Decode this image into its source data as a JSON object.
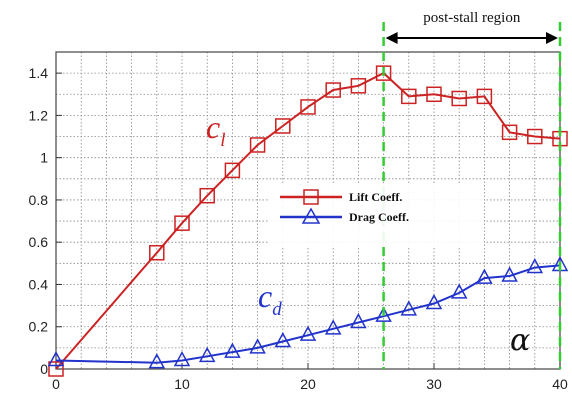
{
  "chart_data": {
    "type": "line",
    "title": "",
    "xlabel": "α",
    "ylabel": "",
    "xlim": [
      0,
      40
    ],
    "ylim": [
      0,
      1.4
    ],
    "x_ticks": [
      "0",
      "10",
      "20",
      "30",
      "40"
    ],
    "y_ticks": [
      "0",
      "0.2",
      "0.4",
      "0.6",
      "0.8",
      "1",
      "1.2",
      "1.4"
    ],
    "grid": true,
    "legend_placement": "center-right",
    "series": [
      {
        "name": "Lift  Coeff.",
        "label": "c_l",
        "label_main": "c",
        "label_sub": "l",
        "color": "#cc2222",
        "marker": "square",
        "x": [
          0,
          8,
          10,
          12,
          14,
          16,
          18,
          20,
          22,
          24,
          26,
          28,
          30,
          32,
          34,
          36,
          38,
          40
        ],
        "values": [
          0.0,
          0.55,
          0.69,
          0.82,
          0.94,
          1.06,
          1.15,
          1.24,
          1.32,
          1.34,
          1.4,
          1.29,
          1.3,
          1.28,
          1.29,
          1.12,
          1.1,
          1.09
        ]
      },
      {
        "name": "Drag Coeff.",
        "label": "c_d",
        "label_main": "c",
        "label_sub": "d",
        "color": "#2233cc",
        "marker": "triangle",
        "x": [
          0,
          8,
          10,
          12,
          14,
          16,
          18,
          20,
          22,
          24,
          26,
          28,
          30,
          32,
          34,
          36,
          38,
          40
        ],
        "values": [
          0.04,
          0.03,
          0.04,
          0.06,
          0.08,
          0.1,
          0.13,
          0.16,
          0.19,
          0.22,
          0.25,
          0.28,
          0.31,
          0.36,
          0.43,
          0.44,
          0.48,
          0.49
        ]
      }
    ],
    "annotations": {
      "post_stall_label": "post-stall region",
      "post_stall_range": [
        26,
        40
      ],
      "boundary_color": "#33cc33"
    }
  }
}
